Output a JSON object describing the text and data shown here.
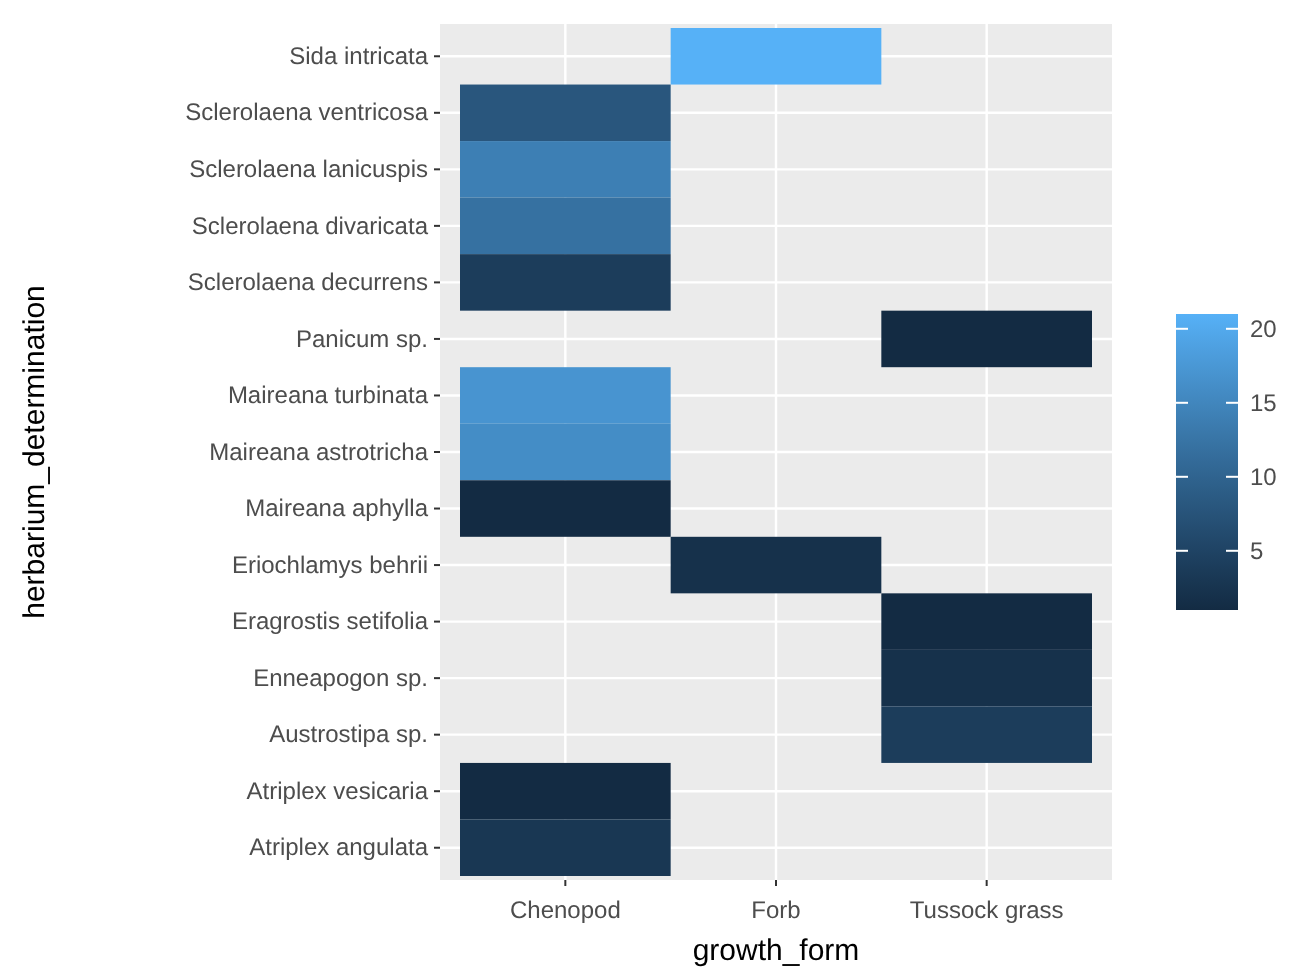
{
  "chart_data": {
    "type": "heatmap",
    "xlabel": "growth_form",
    "ylabel": "herbarium_determination",
    "categories": [
      "Chenopod",
      "Forb",
      "Tussock grass"
    ],
    "y_categories": [
      "Sida intricata",
      "Sclerolaena ventricosa",
      "Sclerolaena lanicuspis",
      "Sclerolaena divaricata",
      "Sclerolaena decurrens",
      "Panicum sp.",
      "Maireana turbinata",
      "Maireana astrotricha",
      "Maireana aphylla",
      "Eriochlamys behrii",
      "Eragrostis setifolia",
      "Enneapogon sp.",
      "Austrostipa sp.",
      "Atriplex vesicaria",
      "Atriplex angulata"
    ],
    "cells": [
      [
        null,
        21,
        null
      ],
      [
        8,
        null,
        null
      ],
      [
        14,
        null,
        null
      ],
      [
        12,
        null,
        null
      ],
      [
        4,
        null,
        null
      ],
      [
        null,
        null,
        1
      ],
      [
        17,
        null,
        null
      ],
      [
        16,
        null,
        null
      ],
      [
        1,
        null,
        null
      ],
      [
        null,
        2,
        null
      ],
      [
        null,
        null,
        1
      ],
      [
        null,
        null,
        2
      ],
      [
        null,
        null,
        4
      ],
      [
        1,
        null,
        null
      ],
      [
        3,
        null,
        null
      ]
    ],
    "clim": [
      1,
      21
    ],
    "cticks": [
      5,
      10,
      15,
      20
    ],
    "grid": true
  }
}
